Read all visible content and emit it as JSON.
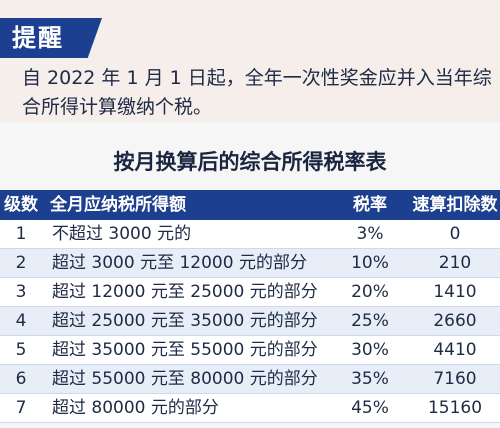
{
  "notice": {
    "tag": "提醒",
    "text": "自 2022 年 1 月 1 日起，全年一次性奖金应并入当年综合所得计算缴纳个税。"
  },
  "table": {
    "title": "按月换算后的综合所得税率表",
    "headers": {
      "level": "级数",
      "range": "全月应纳税所得额",
      "rate": "税率",
      "deduction": "速算扣除数"
    },
    "rows": [
      {
        "level": "1",
        "range": "不超过 3000 元的",
        "rate": "3%",
        "deduction": "0"
      },
      {
        "level": "2",
        "range": "超过 3000 元至 12000 元的部分",
        "rate": "10%",
        "deduction": "210"
      },
      {
        "level": "3",
        "range": "超过 12000 元至 25000 元的部分",
        "rate": "20%",
        "deduction": "1410"
      },
      {
        "level": "4",
        "range": "超过 25000 元至 35000 元的部分",
        "rate": "25%",
        "deduction": "2660"
      },
      {
        "level": "5",
        "range": "超过 35000 元至 55000 元的部分",
        "rate": "30%",
        "deduction": "4410"
      },
      {
        "level": "6",
        "range": "超过 55000 元至 80000 元的部分",
        "rate": "35%",
        "deduction": "7160"
      },
      {
        "level": "7",
        "range": "超过 80000 元的部分",
        "rate": "45%",
        "deduction": "15160"
      }
    ]
  },
  "colors": {
    "accent": "#1d3f8f",
    "notice_bg": "#f5eeea",
    "row_alt": "#e7eef8"
  }
}
